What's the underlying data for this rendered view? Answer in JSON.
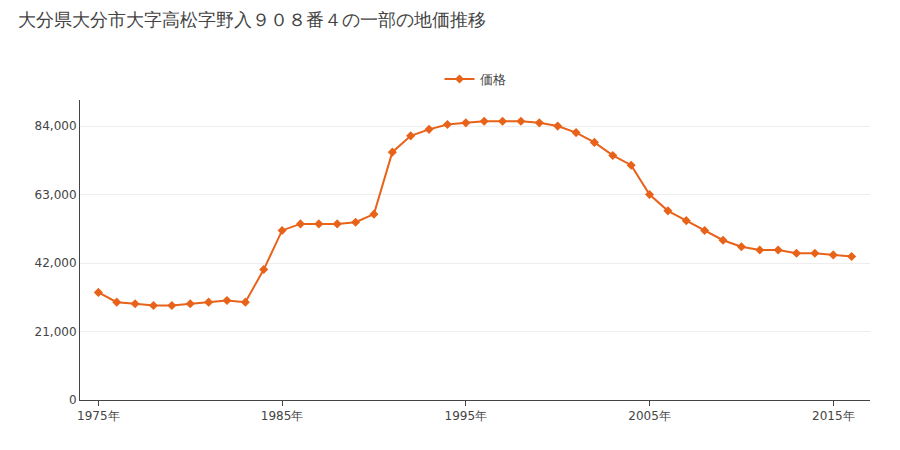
{
  "chart_data": {
    "type": "line",
    "title": "大分県大分市大字高松字野入９０８番４の一部の地価推移",
    "x": [
      1975,
      1976,
      1977,
      1978,
      1979,
      1980,
      1981,
      1982,
      1983,
      1984,
      1985,
      1986,
      1987,
      1988,
      1989,
      1990,
      1991,
      1992,
      1993,
      1994,
      1995,
      1996,
      1997,
      1998,
      1999,
      2000,
      2001,
      2002,
      2003,
      2004,
      2005,
      2006,
      2007,
      2008,
      2009,
      2010,
      2011,
      2012,
      2013,
      2014,
      2015,
      2016
    ],
    "series": [
      {
        "name": "価格",
        "color": "#E8621A",
        "marker": "diamond",
        "values": [
          33000,
          30000,
          29500,
          29000,
          29000,
          29500,
          30000,
          30500,
          30000,
          40000,
          52000,
          54000,
          54000,
          54000,
          54500,
          57000,
          76000,
          81000,
          83000,
          84500,
          85000,
          85500,
          85500,
          85500,
          85000,
          84000,
          82000,
          79000,
          75000,
          72000,
          63000,
          58000,
          55000,
          52000,
          49000,
          47000,
          46000,
          46000,
          45000,
          45000,
          44500,
          44000
        ]
      }
    ],
    "xlim": [
      1974,
      2017
    ],
    "xticks": [
      {
        "value": 1975,
        "label": "1975年"
      },
      {
        "value": 1985,
        "label": "1985年"
      },
      {
        "value": 1995,
        "label": "1995年"
      },
      {
        "value": 2005,
        "label": "2005年"
      },
      {
        "value": 2015,
        "label": "2015年"
      }
    ],
    "ylim": [
      0,
      92000
    ],
    "yticks": [
      0,
      {
        "value": 21000,
        "label": "21,000"
      },
      {
        "value": 42000,
        "label": "42,000"
      },
      {
        "value": 63000,
        "label": "63,000"
      },
      {
        "value": 84000,
        "label": "84,000"
      }
    ],
    "grid": "y",
    "legend": "top"
  }
}
